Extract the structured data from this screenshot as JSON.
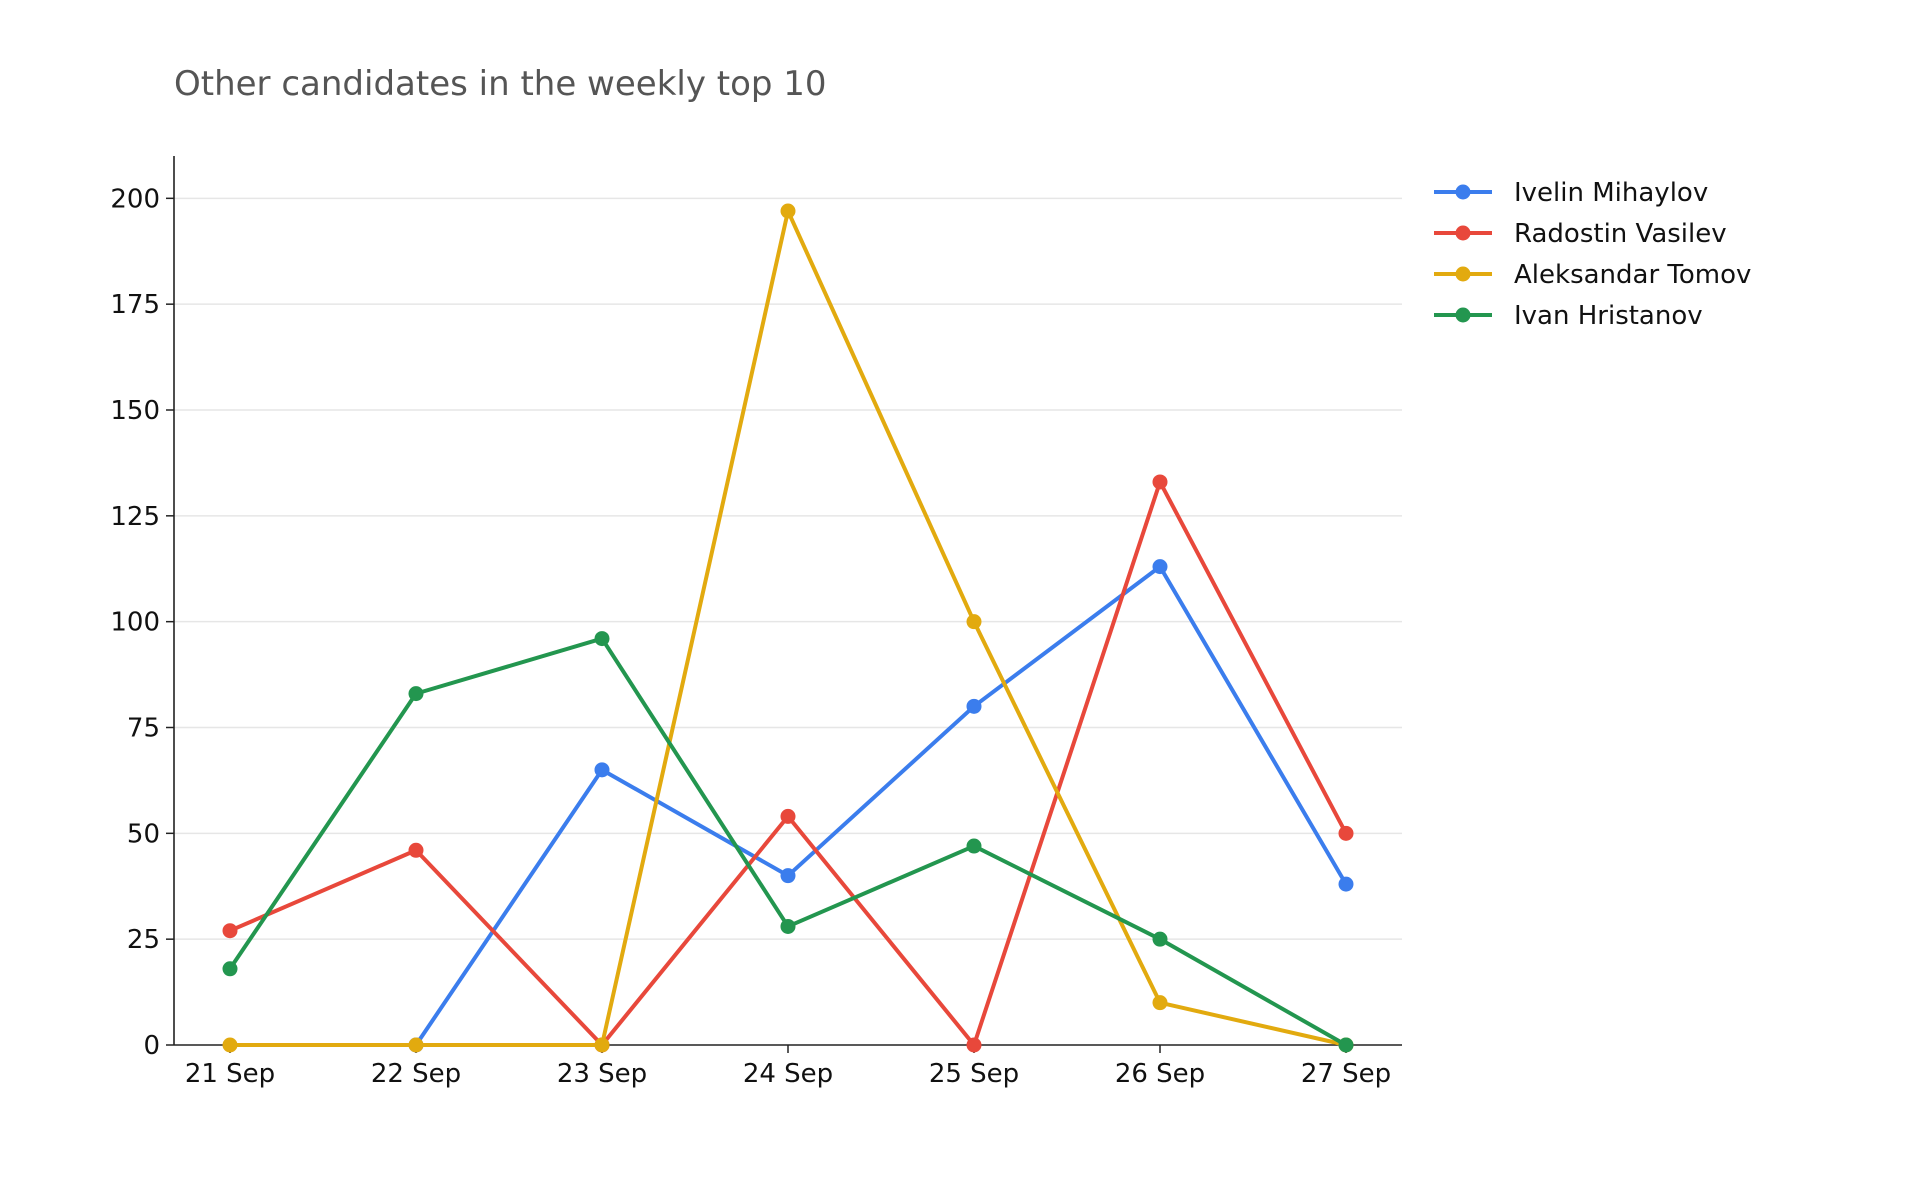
{
  "chart_data": {
    "type": "line",
    "title": "Other candidates in the weekly top 10",
    "xlabel": "",
    "ylabel": "",
    "categories": [
      "21 Sep",
      "22 Sep",
      "23 Sep",
      "24 Sep",
      "25 Sep",
      "26 Sep",
      "27 Sep"
    ],
    "ylim": [
      0,
      210
    ],
    "yticks": [
      0,
      25,
      50,
      75,
      100,
      125,
      150,
      175,
      200
    ],
    "grid": "horizontal",
    "legend_position": "top-right outside",
    "series": [
      {
        "name": "Ivelin Mihaylov",
        "color": "#3b7ded",
        "values": [
          null,
          0,
          65,
          40,
          80,
          113,
          38
        ]
      },
      {
        "name": "Radostin Vasilev",
        "color": "#e8483b",
        "values": [
          27,
          46,
          0,
          54,
          0,
          133,
          50
        ]
      },
      {
        "name": "Aleksandar Tomov",
        "color": "#e2aa0f",
        "values": [
          0,
          0,
          0,
          197,
          100,
          10,
          0
        ]
      },
      {
        "name": "Ivan Hristanov",
        "color": "#23964f",
        "values": [
          18,
          83,
          96,
          28,
          47,
          25,
          0
        ]
      }
    ]
  }
}
